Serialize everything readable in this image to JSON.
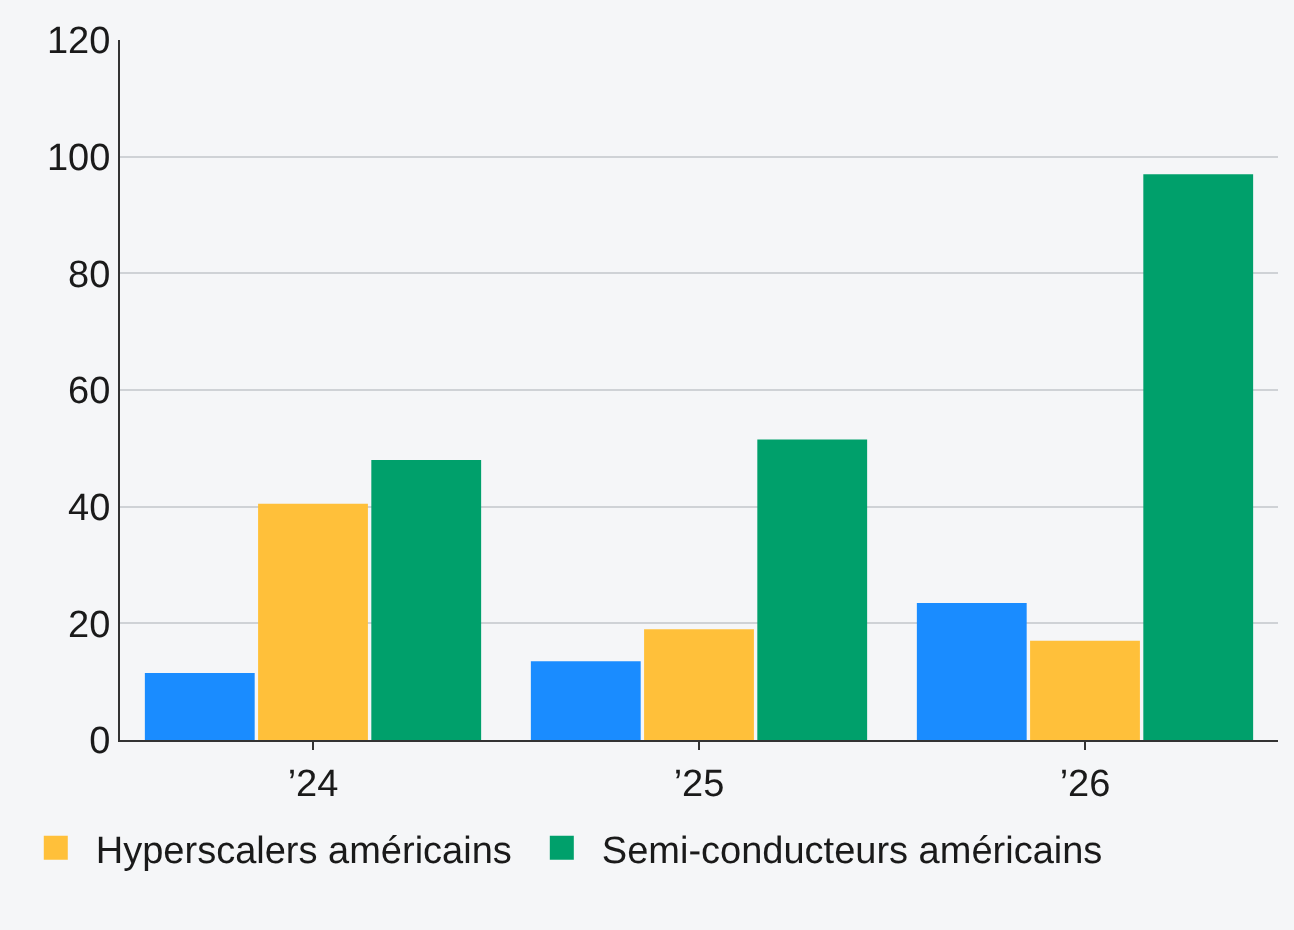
{
  "chart_data": {
    "type": "bar",
    "categories": [
      "’24",
      "’25",
      "’26"
    ],
    "series": [
      {
        "color": "#1a8cff",
        "values": [
          11.5,
          13.5,
          23.5
        ]
      },
      {
        "name": "Hyperscalers américains",
        "color": "#ffc03a",
        "values": [
          40.5,
          19,
          17
        ]
      },
      {
        "name": "Semi-conducteurs américains",
        "color": "#00a06b",
        "values": [
          48,
          51.5,
          97
        ]
      }
    ],
    "ylim": [
      0,
      120
    ],
    "yticks": [
      0,
      20,
      40,
      60,
      80,
      100,
      120
    ],
    "grid": "y",
    "legend": "bottom"
  }
}
